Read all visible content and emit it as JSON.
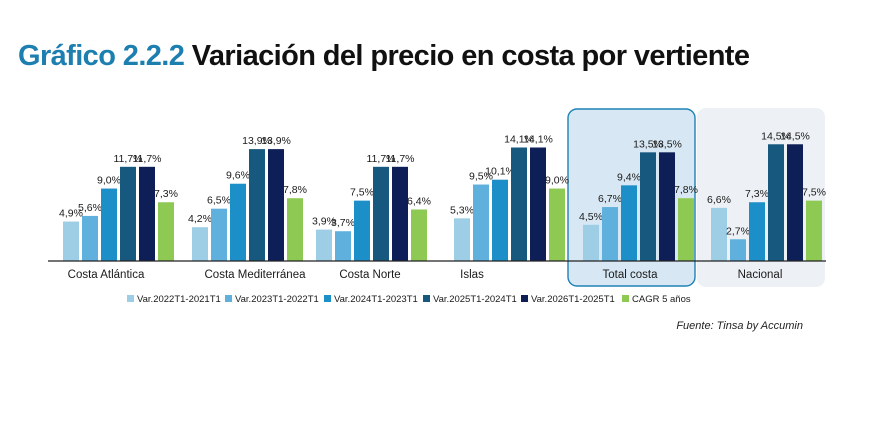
{
  "title_number": "Gráfico 2.2.2",
  "title_text": "Variación del precio en costa por vertiente",
  "source": "Fuente: Tinsa by Accumin",
  "colors": [
    "#9ecde6",
    "#5fb0dd",
    "#1d8fc8",
    "#17587f",
    "#0e1e56",
    "#8dc953"
  ],
  "chart_data": {
    "type": "bar",
    "categories": [
      "Costa Atlántica",
      "Costa Mediterránea",
      "Costa Norte",
      "Islas",
      "Total costa",
      "Nacional"
    ],
    "series": [
      {
        "name": "Var.2022T1-2021T1",
        "values": [
          4.9,
          4.2,
          3.9,
          5.3,
          4.5,
          6.6
        ],
        "labels": [
          "4,9%",
          "4,2%",
          "3,9%",
          "5,3%",
          "4,5%",
          "6,6%"
        ]
      },
      {
        "name": "Var.2023T1-2022T1",
        "values": [
          5.6,
          6.5,
          3.7,
          9.5,
          6.7,
          2.7
        ],
        "labels": [
          "5,6%",
          "6,5%",
          "3,7%",
          "9,5%",
          "6,7%",
          "2,7%"
        ]
      },
      {
        "name": "Var.2024T1-2023T1",
        "values": [
          9.0,
          9.6,
          7.5,
          10.1,
          9.4,
          7.3
        ],
        "labels": [
          "9,0%",
          "9,6%",
          "7,5%",
          "10,1%",
          "9,4%",
          "7,3%"
        ]
      },
      {
        "name": "Var.2025T1-2024T1",
        "values": [
          11.7,
          13.9,
          11.7,
          14.1,
          13.5,
          14.5
        ],
        "labels": [
          "11,7%",
          "13,9%",
          "11,7%",
          "14,1%",
          "13,5%",
          "14,5%"
        ]
      },
      {
        "name": "Var.2026T1-2025T1",
        "values": [
          11.7,
          13.9,
          11.7,
          14.1,
          13.5,
          14.5
        ],
        "labels": [
          "11,7%",
          "13,9%",
          "11,7%",
          "14,1%",
          "13,5%",
          "14,5%"
        ]
      },
      {
        "name": "CAGR 5 años",
        "values": [
          7.3,
          7.8,
          6.4,
          9.0,
          7.8,
          7.5
        ],
        "labels": [
          "7,3%",
          "7,8%",
          "6,4%",
          "9,0%",
          "7,8%",
          "7,5%"
        ]
      }
    ],
    "ylim": [
      0,
      16
    ],
    "grid": false,
    "legend_position": "bottom"
  }
}
